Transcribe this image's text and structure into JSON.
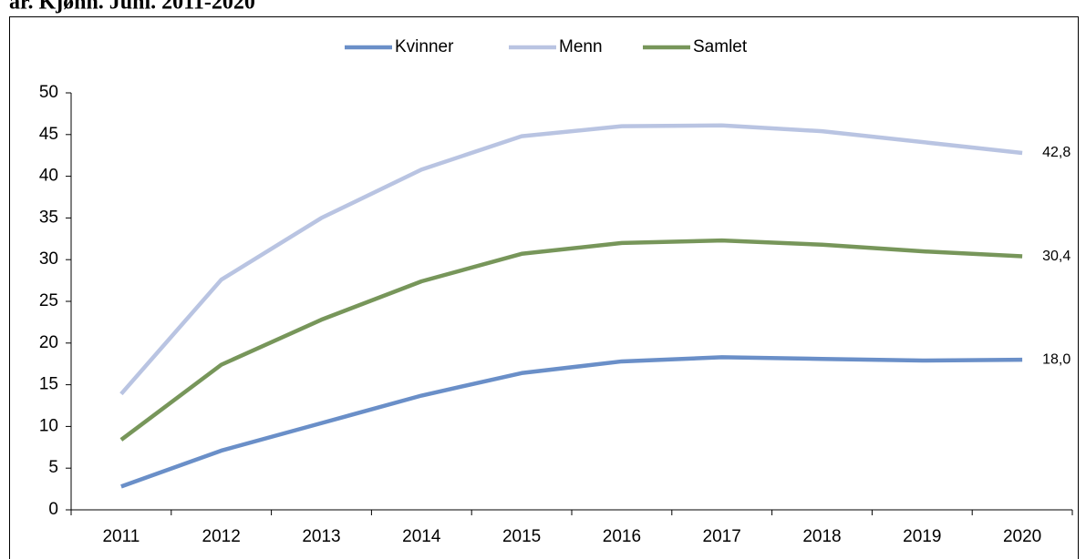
{
  "chart_data": {
    "type": "line",
    "title": "ar. Kjønn. Juni. 2011-2020",
    "categories": [
      "2011",
      "2012",
      "2013",
      "2014",
      "2015",
      "2016",
      "2017",
      "2018",
      "2019",
      "2020"
    ],
    "series": [
      {
        "name": "Kvinner",
        "color": "#6a8fc8",
        "values": [
          2.8,
          7.1,
          10.4,
          13.7,
          16.4,
          17.8,
          18.3,
          18.1,
          17.9,
          18.0
        ],
        "value_labels": [
          null,
          null,
          null,
          null,
          null,
          null,
          null,
          null,
          null,
          "18,0"
        ]
      },
      {
        "name": "Menn",
        "color": "#b9c4e2",
        "values": [
          13.9,
          27.6,
          35.0,
          40.8,
          44.8,
          46.0,
          46.1,
          45.4,
          44.1,
          42.8
        ],
        "value_labels": [
          null,
          null,
          null,
          null,
          null,
          null,
          null,
          null,
          null,
          "42,8"
        ]
      },
      {
        "name": "Samlet",
        "color": "#77965a",
        "values": [
          8.4,
          17.4,
          22.8,
          27.4,
          30.7,
          32.0,
          32.3,
          31.8,
          31.0,
          30.4
        ],
        "value_labels": [
          null,
          null,
          null,
          null,
          null,
          null,
          null,
          null,
          null,
          "30,4"
        ]
      }
    ],
    "ylim": [
      0,
      50
    ],
    "yticks": [
      0,
      5,
      10,
      15,
      20,
      25,
      30,
      35,
      40,
      45,
      50
    ],
    "legend": "top"
  }
}
